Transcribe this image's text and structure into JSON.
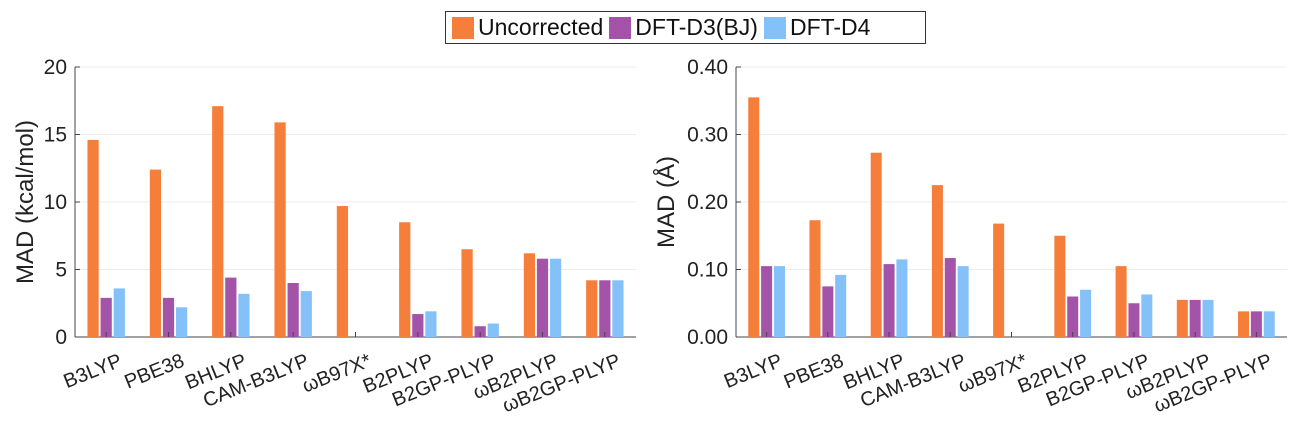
{
  "legend": [
    {
      "name": "Uncorrected",
      "color": "#f47e3a"
    },
    {
      "name": "DFT-D3(BJ)",
      "color": "#a454a8"
    },
    {
      "name": "DFT-D4",
      "color": "#84c1f8"
    }
  ],
  "chart_data": [
    {
      "type": "bar",
      "ylabel": "MAD (kcal/mol)",
      "ylim": [
        0,
        20
      ],
      "yticks": [
        "0",
        "5",
        "10",
        "15",
        "20"
      ],
      "categories": [
        "B3LYP",
        "PBE38",
        "BHLYP",
        "CAM-B3LYP",
        "ωB97X*",
        "B2PLYP",
        "B2GP-PLYP",
        "ωB2PLYP",
        "ωB2GP-PLYP"
      ],
      "series": [
        {
          "name": "Uncorrected",
          "values": [
            14.6,
            12.4,
            17.1,
            15.9,
            9.7,
            8.5,
            6.5,
            6.2,
            4.2
          ]
        },
        {
          "name": "DFT-D3(BJ)",
          "values": [
            2.9,
            2.9,
            4.4,
            4.0,
            0,
            1.7,
            0.8,
            5.8,
            4.2
          ]
        },
        {
          "name": "DFT-D4",
          "values": [
            3.6,
            2.2,
            3.2,
            3.4,
            0,
            1.9,
            1.0,
            5.8,
            4.2
          ]
        }
      ]
    },
    {
      "type": "bar",
      "ylabel": "MAD (Å)",
      "ylim": [
        0,
        0.4
      ],
      "yticks": [
        "0.00",
        "0.10",
        "0.20",
        "0.30",
        "0.40"
      ],
      "categories": [
        "B3LYP",
        "PBE38",
        "BHLYP",
        "CAM-B3LYP",
        "ωB97X*",
        "B2PLYP",
        "B2GP-PLYP",
        "ωB2PLYP",
        "ωB2GP-PLYP"
      ],
      "series": [
        {
          "name": "Uncorrected",
          "values": [
            0.355,
            0.173,
            0.273,
            0.225,
            0.168,
            0.15,
            0.105,
            0.055,
            0.038
          ]
        },
        {
          "name": "DFT-D3(BJ)",
          "values": [
            0.105,
            0.075,
            0.108,
            0.117,
            0,
            0.06,
            0.05,
            0.055,
            0.038
          ]
        },
        {
          "name": "DFT-D4",
          "values": [
            0.105,
            0.092,
            0.115,
            0.105,
            0,
            0.07,
            0.063,
            0.055,
            0.038
          ]
        }
      ]
    }
  ]
}
